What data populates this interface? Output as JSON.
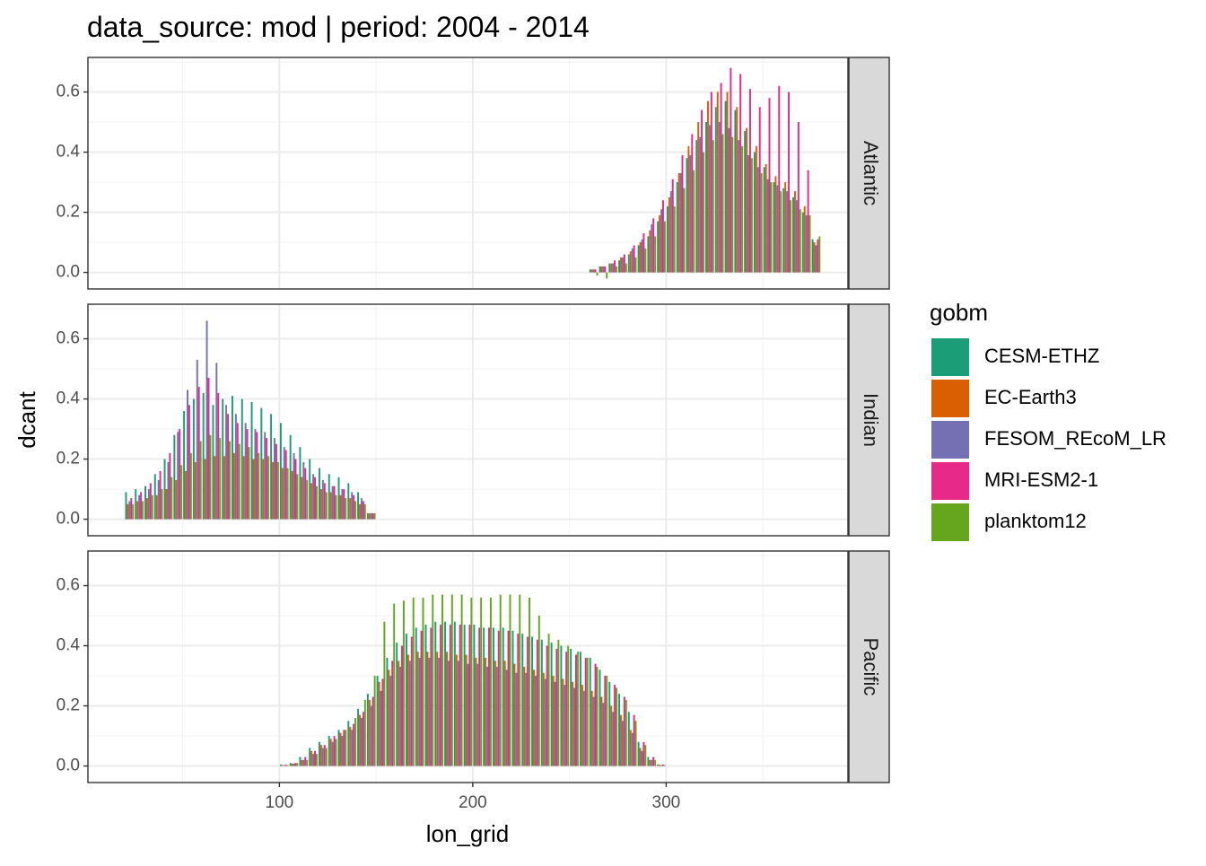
{
  "chart_data": {
    "type": "bar",
    "title": "data_source: mod | period: 2004 - 2014",
    "xlabel": "lon_grid",
    "ylabel": "dcant",
    "xlim": [
      1,
      394
    ],
    "ylim": [
      -0.055,
      0.715
    ],
    "x_ticks": [
      100,
      200,
      300
    ],
    "y_ticks": [
      0.0,
      0.2,
      0.4,
      0.6
    ],
    "y_tick_labels": [
      "0.0",
      "0.2",
      "0.4",
      "0.6"
    ],
    "grid": true,
    "facets": [
      "Atlantic",
      "Indian",
      "Pacific"
    ],
    "legend": {
      "title": "gobm",
      "position": "right",
      "entries": [
        "CESM-ETHZ",
        "EC-Earth3",
        "FESOM_REcoM_LR",
        "MRI-ESM2-1",
        "planktom12"
      ]
    },
    "series_colors": {
      "CESM-ETHZ": "#1b9e77",
      "EC-Earth3": "#d95f02",
      "FESOM_REcoM_LR": "#7570b3",
      "MRI-ESM2-1": "#e7298a",
      "planktom12": "#66a61e"
    },
    "bin_width": 5,
    "panels": [
      {
        "region": "Atlantic",
        "x": [
          262.5,
          267.5,
          272.5,
          277.5,
          282.5,
          287.5,
          292.5,
          297.5,
          302.5,
          307.5,
          312.5,
          317.5,
          322.5,
          327.5,
          332.5,
          337.5,
          342.5,
          347.5,
          352.5,
          357.5,
          362.5,
          367.5,
          372.5,
          377.5
        ],
        "series": [
          {
            "name": "CESM-ETHZ",
            "values": [
              0.01,
              0.02,
              0.03,
              0.04,
              0.06,
              0.09,
              0.12,
              0.17,
              0.22,
              0.3,
              0.38,
              0.44,
              0.5,
              0.55,
              0.57,
              0.54,
              0.47,
              0.4,
              0.35,
              0.3,
              0.28,
              0.25,
              0.2,
              0.11
            ]
          },
          {
            "name": "EC-Earth3",
            "values": [
              0.01,
              0.02,
              0.03,
              0.05,
              0.07,
              0.1,
              0.14,
              0.19,
              0.25,
              0.33,
              0.42,
              0.5,
              0.57,
              0.6,
              0.6,
              0.55,
              0.48,
              0.42,
              0.36,
              0.32,
              0.3,
              0.27,
              0.22,
              0.1
            ]
          },
          {
            "name": "FESOM_REcoM_LR",
            "values": [
              0.01,
              0.02,
              0.03,
              0.05,
              0.08,
              0.11,
              0.16,
              0.21,
              0.27,
              0.33,
              0.39,
              0.45,
              0.49,
              0.5,
              0.48,
              0.44,
              0.39,
              0.35,
              0.31,
              0.29,
              0.27,
              0.24,
              0.19,
              0.09
            ]
          },
          {
            "name": "MRI-ESM2-1",
            "values": [
              0.01,
              0.02,
              0.04,
              0.06,
              0.09,
              0.13,
              0.18,
              0.24,
              0.31,
              0.39,
              0.46,
              0.54,
              0.6,
              0.63,
              0.68,
              0.66,
              0.61,
              0.55,
              0.58,
              0.62,
              0.6,
              0.5,
              0.34,
              0.11
            ]
          },
          {
            "name": "planktom12",
            "values": [
              -0.01,
              -0.02,
              0.02,
              0.03,
              0.05,
              0.08,
              0.12,
              0.17,
              0.22,
              0.28,
              0.34,
              0.4,
              0.44,
              0.46,
              0.45,
              0.42,
              0.38,
              0.33,
              0.3,
              0.27,
              0.24,
              0.21,
              0.19,
              0.12
            ]
          }
        ]
      },
      {
        "region": "Indian",
        "x": [
          22.5,
          27.5,
          32.5,
          37.5,
          42.5,
          47.5,
          52.5,
          57.5,
          62.5,
          67.5,
          72.5,
          77.5,
          82.5,
          87.5,
          92.5,
          97.5,
          102.5,
          107.5,
          112.5,
          117.5,
          122.5,
          127.5,
          132.5,
          137.5,
          142.5,
          147.5
        ],
        "series": [
          {
            "name": "CESM-ETHZ",
            "values": [
              0.09,
              0.1,
              0.11,
              0.15,
              0.2,
              0.28,
              0.36,
              0.4,
              0.42,
              0.38,
              0.4,
              0.41,
              0.4,
              0.39,
              0.37,
              0.35,
              0.32,
              0.28,
              0.24,
              0.2,
              0.17,
              0.15,
              0.14,
              0.12,
              0.09,
              0.02
            ]
          },
          {
            "name": "EC-Earth3",
            "values": [
              0.05,
              0.06,
              0.07,
              0.08,
              0.1,
              0.13,
              0.16,
              0.19,
              0.2,
              0.21,
              0.21,
              0.22,
              0.21,
              0.2,
              0.2,
              0.19,
              0.17,
              0.16,
              0.14,
              0.12,
              0.1,
              0.09,
              0.08,
              0.07,
              0.05,
              0.02
            ]
          },
          {
            "name": "FESOM_REcoM_LR",
            "values": [
              0.06,
              0.08,
              0.1,
              0.13,
              0.19,
              0.29,
              0.43,
              0.53,
              0.66,
              0.52,
              0.38,
              0.35,
              0.32,
              0.3,
              0.29,
              0.27,
              0.24,
              0.22,
              0.19,
              0.15,
              0.13,
              0.11,
              0.1,
              0.09,
              0.07,
              0.02
            ]
          },
          {
            "name": "MRI-ESM2-1",
            "values": [
              0.07,
              0.09,
              0.12,
              0.16,
              0.22,
              0.3,
              0.38,
              0.44,
              0.47,
              0.42,
              0.35,
              0.32,
              0.3,
              0.29,
              0.27,
              0.25,
              0.23,
              0.2,
              0.17,
              0.14,
              0.12,
              0.11,
              0.1,
              0.08,
              0.06,
              0.02
            ]
          },
          {
            "name": "planktom12",
            "values": [
              0.05,
              0.06,
              0.08,
              0.1,
              0.14,
              0.18,
              0.22,
              0.26,
              0.28,
              0.27,
              0.26,
              0.25,
              0.24,
              0.22,
              0.21,
              0.19,
              0.17,
              0.15,
              0.13,
              0.11,
              0.09,
              0.08,
              0.07,
              0.06,
              0.05,
              0.02
            ]
          }
        ]
      },
      {
        "region": "Pacific",
        "x": [
          102.5,
          107.5,
          112.5,
          117.5,
          122.5,
          127.5,
          132.5,
          137.5,
          142.5,
          147.5,
          152.5,
          157.5,
          162.5,
          167.5,
          172.5,
          177.5,
          182.5,
          187.5,
          192.5,
          197.5,
          202.5,
          207.5,
          212.5,
          217.5,
          222.5,
          227.5,
          232.5,
          237.5,
          242.5,
          247.5,
          252.5,
          257.5,
          262.5,
          267.5,
          272.5,
          277.5,
          282.5,
          287.5,
          292.5,
          297.5
        ],
        "series": [
          {
            "name": "CESM-ETHZ",
            "values": [
              0.005,
              0.01,
              0.03,
              0.06,
              0.08,
              0.1,
              0.12,
              0.15,
              0.19,
              0.24,
              0.3,
              0.36,
              0.41,
              0.44,
              0.46,
              0.47,
              0.48,
              0.48,
              0.48,
              0.47,
              0.47,
              0.46,
              0.46,
              0.46,
              0.45,
              0.44,
              0.43,
              0.42,
              0.41,
              0.4,
              0.39,
              0.38,
              0.36,
              0.32,
              0.28,
              0.24,
              0.18,
              0.08,
              0.03,
              0.005
            ]
          },
          {
            "name": "EC-Earth3",
            "values": [
              0.003,
              0.008,
              0.02,
              0.05,
              0.07,
              0.09,
              0.11,
              0.13,
              0.17,
              0.22,
              0.28,
              0.32,
              0.35,
              0.37,
              0.38,
              0.38,
              0.38,
              0.38,
              0.37,
              0.37,
              0.36,
              0.36,
              0.35,
              0.35,
              0.34,
              0.33,
              0.32,
              0.31,
              0.3,
              0.29,
              0.28,
              0.27,
              0.25,
              0.23,
              0.2,
              0.17,
              0.12,
              0.06,
              0.02,
              0.004
            ]
          },
          {
            "name": "FESOM_REcoM_LR",
            "values": [
              0.003,
              0.008,
              0.02,
              0.04,
              0.06,
              0.08,
              0.1,
              0.12,
              0.16,
              0.2,
              0.25,
              0.3,
              0.33,
              0.35,
              0.36,
              0.36,
              0.36,
              0.35,
              0.35,
              0.34,
              0.34,
              0.33,
              0.33,
              0.32,
              0.31,
              0.31,
              0.3,
              0.29,
              0.28,
              0.27,
              0.26,
              0.25,
              0.23,
              0.21,
              0.18,
              0.15,
              0.11,
              0.05,
              0.02,
              0.003
            ]
          },
          {
            "name": "MRI-ESM2-1",
            "values": [
              0.004,
              0.01,
              0.03,
              0.05,
              0.07,
              0.1,
              0.12,
              0.14,
              0.18,
              0.23,
              0.29,
              0.35,
              0.4,
              0.43,
              0.45,
              0.46,
              0.47,
              0.47,
              0.47,
              0.47,
              0.46,
              0.46,
              0.45,
              0.45,
              0.44,
              0.43,
              0.42,
              0.4,
              0.39,
              0.38,
              0.37,
              0.36,
              0.34,
              0.3,
              0.27,
              0.23,
              0.17,
              0.08,
              0.03,
              0.005
            ]
          },
          {
            "name": "planktom12",
            "values": [
              0.003,
              0.01,
              0.02,
              0.04,
              0.06,
              0.09,
              0.12,
              0.16,
              0.22,
              0.3,
              0.48,
              0.54,
              0.55,
              0.56,
              0.56,
              0.57,
              0.57,
              0.57,
              0.57,
              0.56,
              0.56,
              0.56,
              0.57,
              0.57,
              0.57,
              0.56,
              0.5,
              0.44,
              0.42,
              0.4,
              0.38,
              0.36,
              0.33,
              0.3,
              0.26,
              0.22,
              0.15,
              0.07,
              0.02,
              0.003
            ]
          }
        ]
      }
    ]
  }
}
